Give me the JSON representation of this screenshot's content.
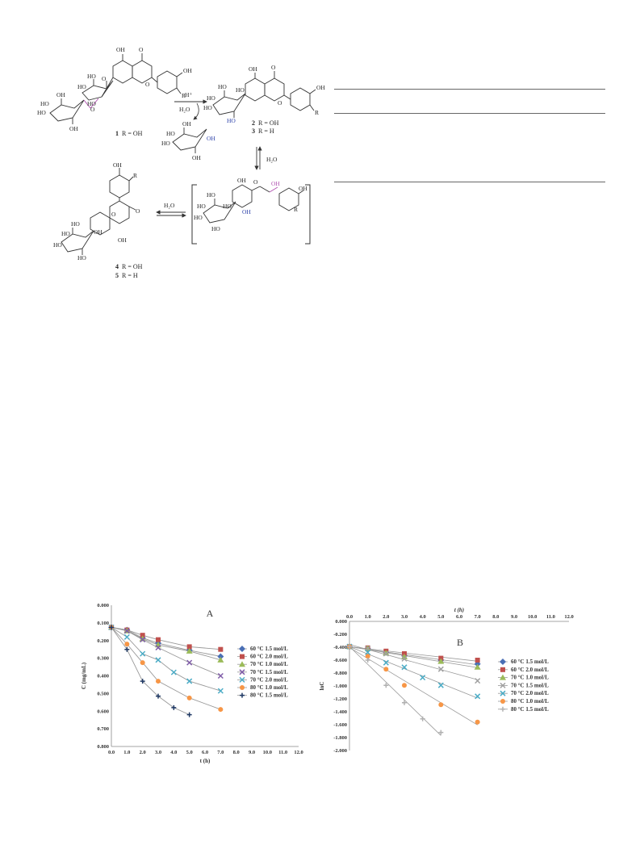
{
  "scheme": {
    "reagent_acid": "H⁺",
    "reagent_water": "H₂O",
    "compounds": [
      {
        "num": "1",
        "text": "R = OH"
      },
      {
        "num": "2",
        "text": "R = OH"
      },
      {
        "num": "3",
        "text": "R = H"
      },
      {
        "num": "4",
        "text": "R = OH"
      },
      {
        "num": "5",
        "text": "R = H"
      }
    ],
    "atom_labels": {
      "oh": "OH",
      "ho": "HO",
      "o": "O",
      "r": "R"
    }
  },
  "chart_data": [
    {
      "id": "A",
      "type": "line",
      "panel_label": "A",
      "xlabel": "t (h)",
      "ylabel": "C (mg/mL)",
      "xlim": [
        0,
        12
      ],
      "ylim": [
        0,
        0.8
      ],
      "x_ticks": [
        "0.0",
        "1.0",
        "2.0",
        "3.0",
        "4.0",
        "5.0",
        "6.0",
        "7.0",
        "8.0",
        "9.0",
        "10.0",
        "11.0",
        "12.0"
      ],
      "y_ticks": [
        "0.000",
        "0.100",
        "0.200",
        "0.300",
        "0.400",
        "0.500",
        "0.600",
        "0.700",
        "0.800"
      ],
      "legend_position": "right",
      "series": [
        {
          "name": "60 °C  1.5 mol/L",
          "color": "#4a6fb5",
          "marker": "diamond",
          "x": [
            0,
            1,
            2,
            3,
            5,
            7
          ],
          "y": [
            0.675,
            0.66,
            0.615,
            0.585,
            0.545,
            0.51
          ]
        },
        {
          "name": "60 °C  2.0 mol/L",
          "color": "#c0504d",
          "marker": "square",
          "x": [
            0,
            1,
            2,
            3,
            5,
            7
          ],
          "y": [
            0.675,
            0.66,
            0.63,
            0.605,
            0.565,
            0.55
          ]
        },
        {
          "name": "70 °C  1.0 mol/L",
          "color": "#9bbb59",
          "marker": "triangle",
          "x": [
            0,
            1,
            2,
            3,
            5,
            7
          ],
          "y": [
            0.675,
            0.655,
            0.61,
            0.575,
            0.54,
            0.49
          ]
        },
        {
          "name": "70 °C  1.5 mol/L",
          "color": "#7f5ca8",
          "marker": "cross",
          "x": [
            0,
            1,
            2,
            3,
            5,
            7
          ],
          "y": [
            0.675,
            0.655,
            0.605,
            0.56,
            0.475,
            0.4
          ]
        },
        {
          "name": "70 °C  2.0 mol/L",
          "color": "#4bacc6",
          "marker": "cross",
          "x": [
            0,
            1,
            2,
            3,
            4,
            5,
            7
          ],
          "y": [
            0.675,
            0.62,
            0.525,
            0.49,
            0.42,
            0.37,
            0.315
          ]
        },
        {
          "name": "80 °C  1.0 mol/L",
          "color": "#f79646",
          "marker": "circle",
          "x": [
            0,
            1,
            2,
            3,
            5,
            7
          ],
          "y": [
            0.675,
            0.58,
            0.475,
            0.37,
            0.275,
            0.21
          ]
        },
        {
          "name": "80 °C  1.5 mol/L",
          "color": "#1f3864",
          "marker": "plus",
          "x": [
            0,
            1,
            2,
            3,
            4,
            5
          ],
          "y": [
            0.675,
            0.55,
            0.37,
            0.285,
            0.22,
            0.18
          ]
        }
      ]
    },
    {
      "id": "B",
      "type": "scatter",
      "panel_label": "B",
      "xlabel": "t (h)",
      "ylabel": "lnC",
      "xlim": [
        0,
        12
      ],
      "ylim": [
        -2,
        0
      ],
      "x_axis_position": "top",
      "x_ticks": [
        "0.0",
        "1.0",
        "2.0",
        "3.0",
        "4.0",
        "5.0",
        "6.0",
        "7.0",
        "8.0",
        "9.0",
        "10.0",
        "11.0",
        "12.0"
      ],
      "y_ticks": [
        "0.000",
        "-0.200",
        "-0.400",
        "-0.600",
        "-0.800",
        "-1.000",
        "-1.200",
        "-1.400",
        "-1.600",
        "-1.800",
        "-2.000"
      ],
      "legend_position": "right",
      "series": [
        {
          "name": "60 °C  1.5 mol/L",
          "color": "#4a6fb5",
          "marker": "diamond",
          "x": [
            0,
            1,
            2,
            3,
            5,
            7
          ],
          "y": [
            -0.39,
            -0.42,
            -0.48,
            -0.53,
            -0.6,
            -0.66
          ]
        },
        {
          "name": "60 °C  2.0 mol/L",
          "color": "#c0504d",
          "marker": "square",
          "x": [
            0,
            1,
            2,
            3,
            5,
            7
          ],
          "y": [
            -0.39,
            -0.41,
            -0.46,
            -0.5,
            -0.57,
            -0.6
          ]
        },
        {
          "name": "70 °C  1.0 mol/L",
          "color": "#9bbb59",
          "marker": "triangle",
          "x": [
            0,
            1,
            2,
            3,
            5,
            7
          ],
          "y": [
            -0.39,
            -0.42,
            -0.49,
            -0.55,
            -0.62,
            -0.71
          ]
        },
        {
          "name": "70 °C  1.5 mol/L",
          "color": "#a0a0a0",
          "marker": "cross",
          "x": [
            0,
            1,
            2,
            3,
            5,
            7
          ],
          "y": [
            -0.39,
            -0.42,
            -0.5,
            -0.58,
            -0.74,
            -0.92
          ]
        },
        {
          "name": "70 °C  2.0 mol/L",
          "color": "#4bacc6",
          "marker": "cross",
          "x": [
            0,
            1,
            2,
            3,
            4,
            5,
            7
          ],
          "y": [
            -0.39,
            -0.48,
            -0.64,
            -0.71,
            -0.87,
            -0.99,
            -1.16
          ]
        },
        {
          "name": "80 °C  1.0 mol/L",
          "color": "#f79646",
          "marker": "circle",
          "x": [
            0,
            1,
            2,
            3,
            5,
            7
          ],
          "y": [
            -0.39,
            -0.54,
            -0.74,
            -0.99,
            -1.29,
            -1.56
          ]
        },
        {
          "name": "80 °C  1.5 mol/L",
          "color": "#b0b0b0",
          "marker": "plus",
          "x": [
            0,
            1,
            2,
            3,
            4,
            5
          ],
          "y": [
            -0.39,
            -0.6,
            -0.99,
            -1.26,
            -1.51,
            -1.72
          ]
        }
      ]
    }
  ]
}
